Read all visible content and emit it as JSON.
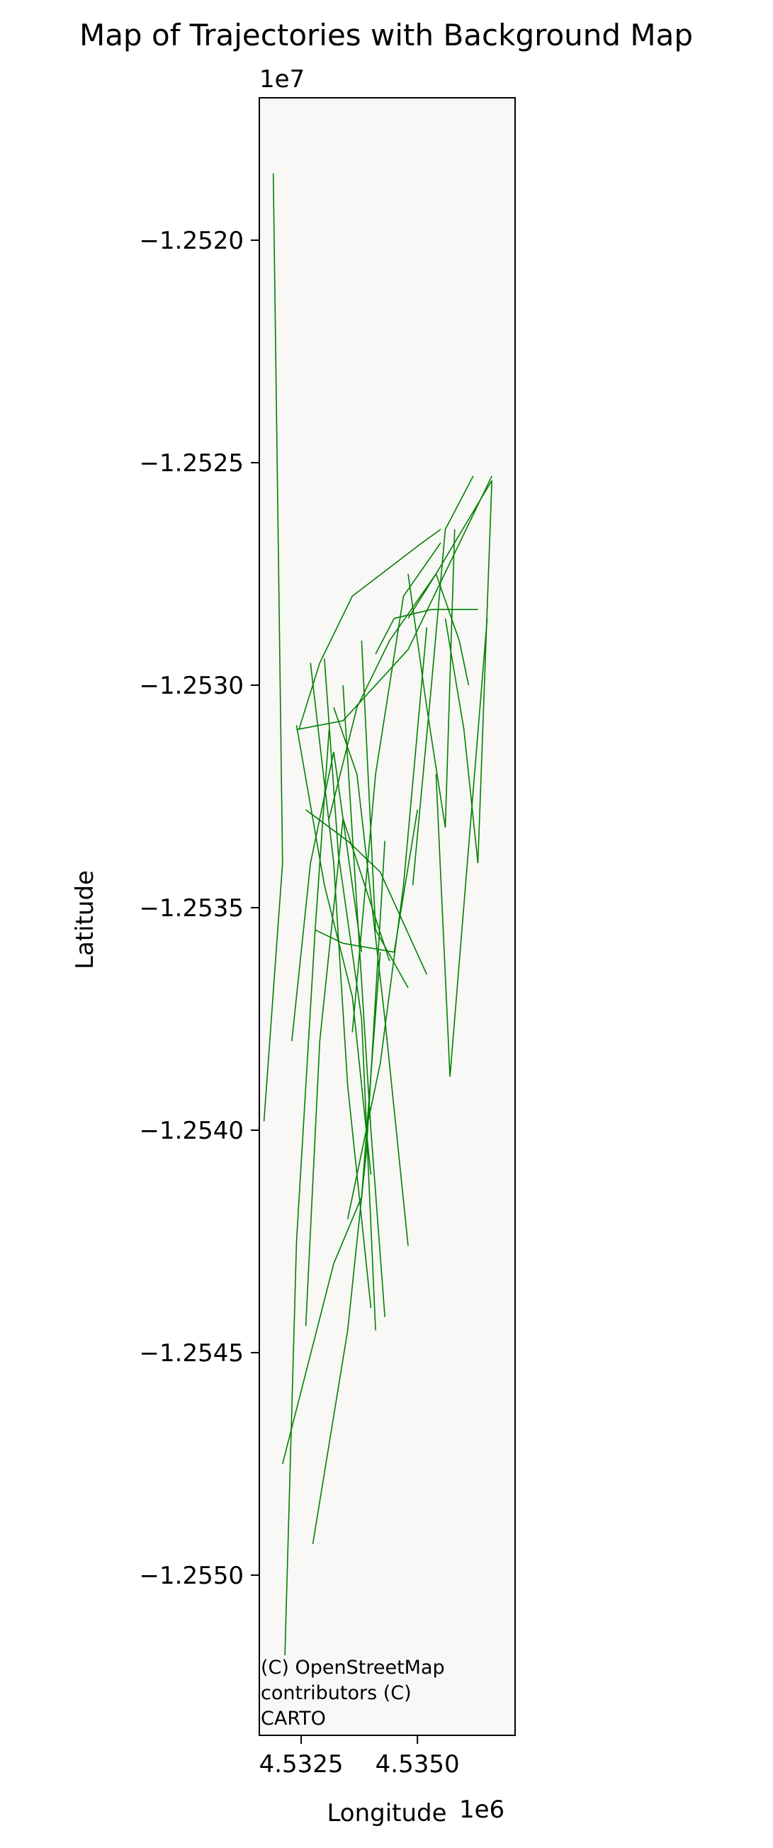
{
  "chart_data": {
    "type": "line",
    "title": "Map of Trajectories with Background Map",
    "xlabel": "Longitude",
    "ylabel": "Latitude",
    "x_offset_label": "1e6",
    "y_offset_label": "1e7",
    "xlim": [
      4531600,
      4537100
    ],
    "ylim": [
      -12553600,
      -12516800
    ],
    "xticks": [
      4532500,
      4535000
    ],
    "xtick_labels": [
      "4.5325",
      "4.5350"
    ],
    "yticks": [
      -12520000,
      -12525000,
      -12530000,
      -12535000,
      -12540000,
      -12545000,
      -12550000
    ],
    "ytick_labels": [
      "−1.2520",
      "−1.2525",
      "−1.2530",
      "−1.2535",
      "−1.2540",
      "−1.2545",
      "−1.2550"
    ],
    "attribution": [
      "(C) OpenStreetMap",
      "contributors (C)",
      "CARTO"
    ],
    "line_color": "#008000",
    "background_color": "#f8f8f6",
    "grid": false,
    "series": [
      {
        "x": [
          4531900,
          4532100,
          4531700
        ],
        "y": [
          -12518500,
          -12534000,
          -12539800
        ]
      },
      {
        "x": [
          4532150,
          4532400,
          4532800,
          4533100
        ],
        "y": [
          -12551800,
          -12542500,
          -12535500,
          -12531000
        ]
      },
      {
        "x": [
          4532100,
          4533200,
          4533800,
          4534200
        ],
        "y": [
          -12547500,
          -12543000,
          -12541500,
          -12536000
        ]
      },
      {
        "x": [
          4532750,
          4533500,
          4533900,
          4534300
        ],
        "y": [
          -12549300,
          -12544500,
          -12540500,
          -12533500
        ]
      },
      {
        "x": [
          4532450,
          4532900,
          4533600,
          4535100,
          4535500
        ],
        "y": [
          -12531000,
          -12529500,
          -12528000,
          -12526800,
          -12526500
        ]
      },
      {
        "x": [
          4533100,
          4533700,
          4534400,
          4535400,
          4536600
        ],
        "y": [
          -12533000,
          -12530500,
          -12529000,
          -12527500,
          -12525400
        ]
      },
      {
        "x": [
          4532400,
          4533400,
          4534800,
          4536600
        ],
        "y": [
          -12531000,
          -12530800,
          -12529200,
          -12525300
        ]
      },
      {
        "x": [
          4533000,
          4533300,
          4533800,
          4534100
        ],
        "y": [
          -12529400,
          -12533800,
          -12537500,
          -12544500
        ]
      },
      {
        "x": [
          4532700,
          4533200,
          4533500,
          4534000
        ],
        "y": [
          -12529500,
          -12534000,
          -12539000,
          -12544000
        ]
      },
      {
        "x": [
          4533400,
          4533700,
          4534000,
          4534300
        ],
        "y": [
          -12530000,
          -12535000,
          -12540000,
          -12544200
        ]
      },
      {
        "x": [
          4533800,
          4534100,
          4534800
        ],
        "y": [
          -12529000,
          -12535500,
          -12536800
        ]
      },
      {
        "x": [
          4534100,
          4534500,
          4535300,
          4536300
        ],
        "y": [
          -12529300,
          -12528500,
          -12528300,
          -12528300
        ]
      },
      {
        "x": [
          4534900,
          4535300,
          4535600,
          4536200
        ],
        "y": [
          -12534500,
          -12530000,
          -12526500,
          -12525300
        ]
      },
      {
        "x": [
          4535600,
          4536000,
          4536300,
          4536600
        ],
        "y": [
          -12528500,
          -12531000,
          -12534000,
          -12525400
        ]
      },
      {
        "x": [
          4535400,
          4535700,
          4536500
        ],
        "y": [
          -12532000,
          -12538800,
          -12528500
        ]
      },
      {
        "x": [
          4532600,
          4533500,
          4534200,
          4535200
        ],
        "y": [
          -12532800,
          -12533500,
          -12534200,
          -12536500
        ]
      },
      {
        "x": [
          4532800,
          4533400,
          4534500,
          4535000
        ],
        "y": [
          -12535500,
          -12535800,
          -12536000,
          -12532800
        ]
      },
      {
        "x": [
          4533200,
          4533700,
          4534300,
          4534800
        ],
        "y": [
          -12530500,
          -12532000,
          -12537500,
          -12542600
        ]
      },
      {
        "x": [
          4534800,
          4535200,
          4535600,
          4535800
        ],
        "y": [
          -12527500,
          -12530500,
          -12533200,
          -12526500
        ]
      },
      {
        "x": [
          4533600,
          4534100,
          4534700,
          4535500
        ],
        "y": [
          -12537800,
          -12532000,
          -12528000,
          -12526800
        ]
      },
      {
        "x": [
          4532300,
          4532700,
          4533200,
          4533800
        ],
        "y": [
          -12538000,
          -12534000,
          -12531500,
          -12536000
        ]
      },
      {
        "x": [
          4532600,
          4532900,
          4533400,
          4534400
        ],
        "y": [
          -12544400,
          -12538000,
          -12533000,
          -12536200
        ]
      },
      {
        "x": [
          4533500,
          4534200,
          4534700,
          4535200
        ],
        "y": [
          -12542000,
          -12538500,
          -12534500,
          -12528700
        ]
      },
      {
        "x": [
          4532400,
          4533000,
          4533600,
          4534000
        ],
        "y": [
          -12530900,
          -12534500,
          -12537000,
          -12541000
        ]
      },
      {
        "x": [
          4534800,
          4535400,
          4535900,
          4536100
        ],
        "y": [
          -12528500,
          -12527500,
          -12529000,
          -12530000
        ]
      }
    ]
  }
}
